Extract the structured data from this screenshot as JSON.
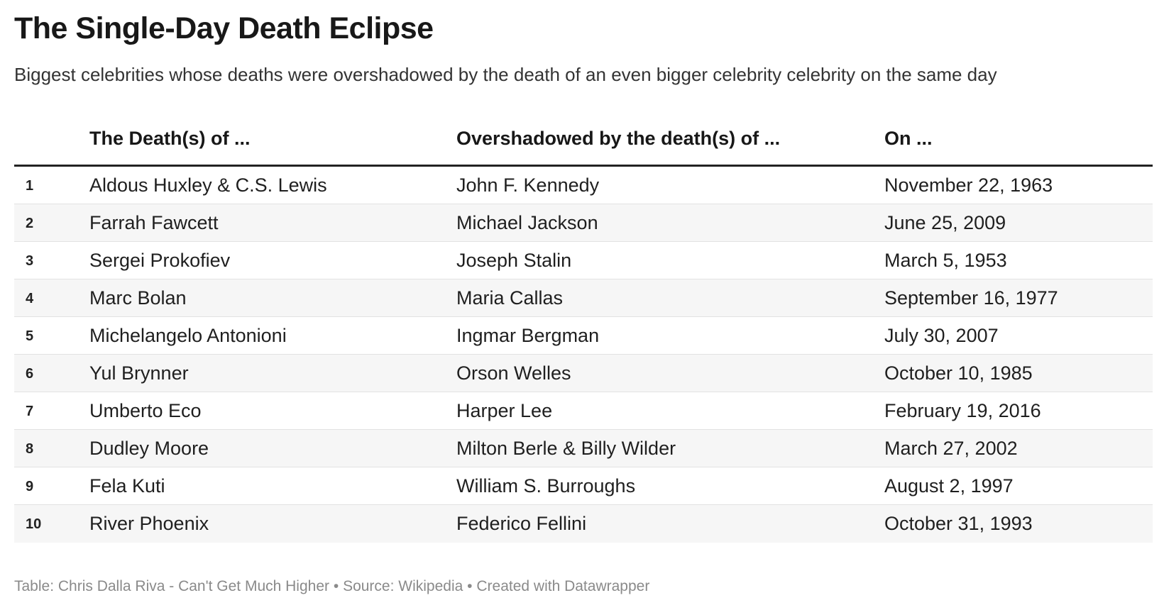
{
  "title": "The Single-Day Death Eclipse",
  "subtitle": "Biggest celebrities whose deaths were overshadowed by the death of an even bigger celebrity celebrity on the same day",
  "footer": {
    "credit": "Table: Chris Dalla Riva - Can't Get Much Higher",
    "separator": "•",
    "source": "Source: Wikipedia",
    "created_with": "Created with Datawrapper"
  },
  "chart_data": {
    "type": "table",
    "title": "The Single-Day Death Eclipse",
    "columns": [
      "",
      "The Death(s) of ...",
      "Overshadowed by the death(s) of ...",
      "On ..."
    ],
    "rows": [
      {
        "rank": "1",
        "deceased": "Aldous Huxley & C.S. Lewis",
        "overshadowed_by": "John F. Kennedy",
        "date": "November 22, 1963"
      },
      {
        "rank": "2",
        "deceased": "Farrah Fawcett",
        "overshadowed_by": "Michael Jackson",
        "date": "June 25, 2009"
      },
      {
        "rank": "3",
        "deceased": "Sergei Prokofiev",
        "overshadowed_by": "Joseph Stalin",
        "date": "March 5, 1953"
      },
      {
        "rank": "4",
        "deceased": "Marc Bolan",
        "overshadowed_by": "Maria Callas",
        "date": "September 16, 1977"
      },
      {
        "rank": "5",
        "deceased": "Michelangelo Antonioni",
        "overshadowed_by": "Ingmar Bergman",
        "date": "July 30, 2007"
      },
      {
        "rank": "6",
        "deceased": "Yul Brynner",
        "overshadowed_by": "Orson Welles",
        "date": "October 10, 1985"
      },
      {
        "rank": "7",
        "deceased": "Umberto Eco",
        "overshadowed_by": "Harper Lee",
        "date": "February 19, 2016"
      },
      {
        "rank": "8",
        "deceased": "Dudley Moore",
        "overshadowed_by": "Milton Berle & Billy Wilder",
        "date": "March 27, 2002"
      },
      {
        "rank": "9",
        "deceased": "Fela Kuti",
        "overshadowed_by": "William S. Burroughs",
        "date": "August 2, 1997"
      },
      {
        "rank": "10",
        "deceased": "River Phoenix",
        "overshadowed_by": "Federico Fellini",
        "date": "October 31, 1993"
      }
    ]
  }
}
